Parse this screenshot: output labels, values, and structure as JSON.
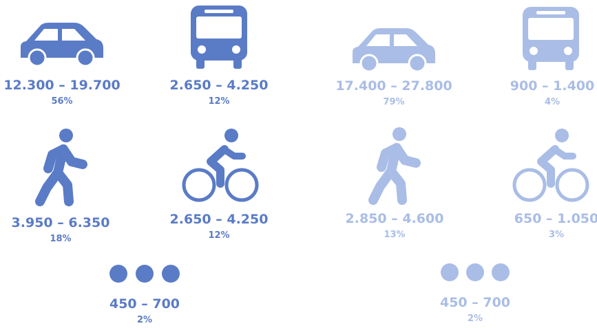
{
  "groups": [
    {
      "items": [
        {
          "range": "12.300 – 19.700",
          "share": "56%"
        },
        {
          "range": "2.650 – 4.250",
          "share": "12%"
        },
        {
          "range": "3.950 – 6.350",
          "share": "18%"
        },
        {
          "range": "2.650 – 4.250",
          "share": "12%"
        },
        {
          "range": "450 – 700",
          "share": "2%"
        }
      ]
    },
    {
      "items": [
        {
          "range": "17.400 – 27.800",
          "share": "79%"
        },
        {
          "range": "900 – 1.400",
          "share": "4%"
        },
        {
          "range": "2.850 – 4.600",
          "share": "13%"
        },
        {
          "range": "650 – 1.050",
          "share": "3%"
        },
        {
          "range": "450 – 700",
          "share": "2%"
        }
      ]
    }
  ]
}
